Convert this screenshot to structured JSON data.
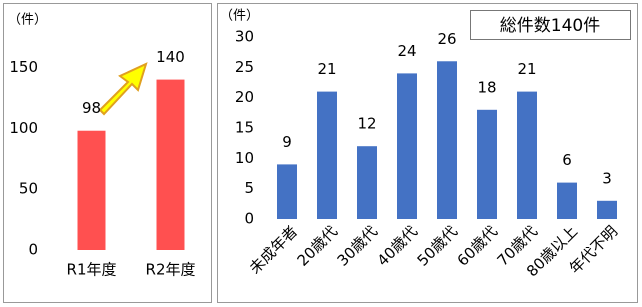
{
  "chart_data": [
    {
      "type": "bar",
      "unit_label": "（件）",
      "categories": [
        "R1年度",
        "R2年度"
      ],
      "values": [
        98,
        140
      ],
      "color": "#ff5050",
      "ylim": [
        0,
        175
      ],
      "yticks": [
        0,
        50,
        100,
        150
      ]
    },
    {
      "type": "bar",
      "unit_label": "（件）",
      "title": "総件数140件",
      "categories": [
        "未成年者",
        "20歳代",
        "30歳代",
        "40歳代",
        "50歳代",
        "60歳代",
        "70歳代",
        "80歳以上",
        "年代不明"
      ],
      "values": [
        9,
        21,
        12,
        24,
        26,
        18,
        21,
        6,
        3
      ],
      "color": "#4472c4",
      "ylim": [
        0,
        30
      ],
      "yticks": [
        0,
        5,
        10,
        15,
        20,
        25,
        30
      ]
    }
  ]
}
